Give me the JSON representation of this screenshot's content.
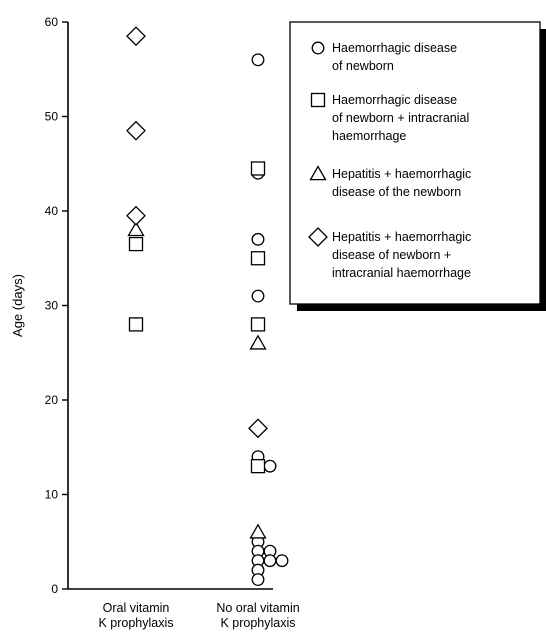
{
  "chart_data": {
    "type": "scatter",
    "ylabel": "Age (days)",
    "ylim": [
      0,
      60
    ],
    "yticks": [
      0,
      10,
      20,
      30,
      40,
      50,
      60
    ],
    "categories": [
      {
        "lines": [
          "Oral vitamin",
          "K prophylaxis"
        ]
      },
      {
        "lines": [
          "No oral vitamin",
          "K prophylaxis"
        ]
      }
    ],
    "legend_position": "top-right",
    "series": [
      {
        "name_lines": [
          "Haemorrhagic disease",
          "of newborn"
        ],
        "marker": "circle",
        "points": [
          {
            "cat": 1,
            "y": 56,
            "dx": 0
          },
          {
            "cat": 1,
            "y": 44,
            "dx": 0
          },
          {
            "cat": 1,
            "y": 37,
            "dx": 0
          },
          {
            "cat": 1,
            "y": 31,
            "dx": 0
          },
          {
            "cat": 1,
            "y": 14,
            "dx": 0
          },
          {
            "cat": 1,
            "y": 13,
            "dx": 1
          },
          {
            "cat": 1,
            "y": 5,
            "dx": 0
          },
          {
            "cat": 1,
            "y": 4,
            "dx": 0
          },
          {
            "cat": 1,
            "y": 4,
            "dx": 1
          },
          {
            "cat": 1,
            "y": 3,
            "dx": 0
          },
          {
            "cat": 1,
            "y": 3,
            "dx": 1
          },
          {
            "cat": 1,
            "y": 3,
            "dx": 2
          },
          {
            "cat": 1,
            "y": 2,
            "dx": 0
          },
          {
            "cat": 1,
            "y": 1,
            "dx": 0
          }
        ]
      },
      {
        "name_lines": [
          "Haemorrhagic disease",
          "of newborn + intracranial",
          "haemorrhage"
        ],
        "marker": "square",
        "points": [
          {
            "cat": 0,
            "y": 36.5,
            "dx": 0
          },
          {
            "cat": 0,
            "y": 28,
            "dx": 0
          },
          {
            "cat": 1,
            "y": 44.5,
            "dx": 0
          },
          {
            "cat": 1,
            "y": 35,
            "dx": 0
          },
          {
            "cat": 1,
            "y": 28,
            "dx": 0
          },
          {
            "cat": 1,
            "y": 13,
            "dx": 0
          }
        ]
      },
      {
        "name_lines": [
          "Hepatitis + haemorrhagic",
          "disease of the newborn"
        ],
        "marker": "triangle",
        "points": [
          {
            "cat": 0,
            "y": 38,
            "dx": 0
          },
          {
            "cat": 1,
            "y": 26,
            "dx": 0
          },
          {
            "cat": 1,
            "y": 6,
            "dx": 0
          }
        ]
      },
      {
        "name_lines": [
          "Hepatitis + haemorrhagic",
          "disease of newborn +",
          "intracranial  haemorrhage"
        ],
        "marker": "diamond",
        "points": [
          {
            "cat": 0,
            "y": 58.5,
            "dx": 0
          },
          {
            "cat": 0,
            "y": 48.5,
            "dx": 0
          },
          {
            "cat": 0,
            "y": 39.5,
            "dx": 0
          },
          {
            "cat": 1,
            "y": 17,
            "dx": 0
          }
        ]
      }
    ]
  }
}
